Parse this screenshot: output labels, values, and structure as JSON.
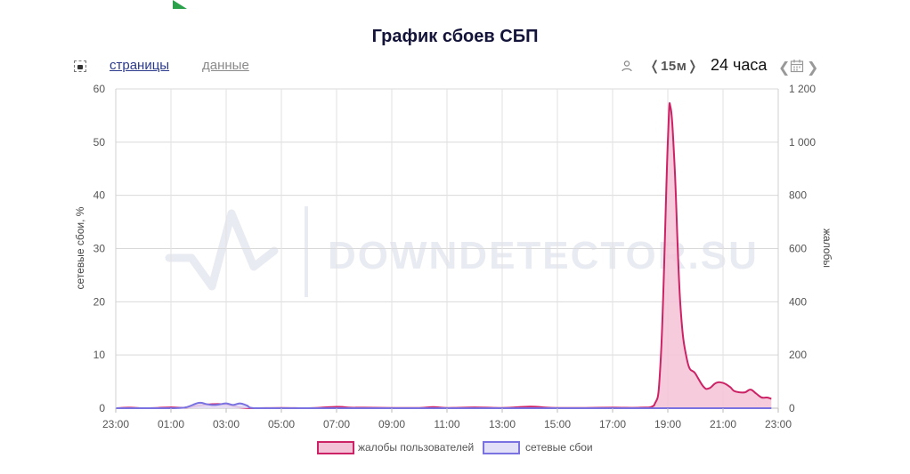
{
  "page": {
    "title": "График сбоев СБП"
  },
  "toolbar": {
    "tab_pages": "страницы",
    "tab_data": "данные",
    "interval": "❬15м❭",
    "period": "24 часа",
    "nav_prev": "❮",
    "nav_next": "❯",
    "icons": [
      "camera-icon",
      "user-icon",
      "calendar-icon"
    ]
  },
  "watermark": "DOWNDETECTOR.SU",
  "chart_data": {
    "type": "area",
    "x_ticks": [
      "23:00",
      "01:00",
      "03:00",
      "05:00",
      "07:00",
      "09:00",
      "11:00",
      "13:00",
      "15:00",
      "17:00",
      "19:00",
      "21:00",
      "23:00"
    ],
    "xlim_hours": [
      0,
      24
    ],
    "y_left": {
      "label": "сетевые сбои, %",
      "ticks": [
        "0",
        "10",
        "20",
        "30",
        "40",
        "50",
        "60"
      ],
      "ylim": [
        0,
        60
      ]
    },
    "y_right": {
      "label": "жалобы",
      "ticks": [
        "0",
        "200",
        "400",
        "600",
        "800",
        "1 000",
        "1 200"
      ],
      "ylim": [
        0,
        1200
      ]
    },
    "legend": {
      "position": "bottom"
    },
    "grid": true,
    "series": [
      {
        "name": "жалобы пользователей",
        "axis": "right",
        "color": "#cc2266",
        "fill": "#f4c2d6",
        "points": [
          [
            0,
            0
          ],
          [
            0.5,
            2
          ],
          [
            1,
            0
          ],
          [
            1.5,
            1
          ],
          [
            2,
            3
          ],
          [
            2.5,
            2
          ],
          [
            3,
            10
          ],
          [
            3.5,
            15
          ],
          [
            4,
            14
          ],
          [
            4.5,
            3
          ],
          [
            5,
            0
          ],
          [
            6,
            1
          ],
          [
            7,
            0
          ],
          [
            8,
            5
          ],
          [
            8.5,
            2
          ],
          [
            9,
            2
          ],
          [
            10,
            1
          ],
          [
            11,
            1
          ],
          [
            11.5,
            4
          ],
          [
            12,
            1
          ],
          [
            13,
            3
          ],
          [
            14,
            1
          ],
          [
            15,
            6
          ],
          [
            15.5,
            3
          ],
          [
            16,
            1
          ],
          [
            17,
            1
          ],
          [
            18,
            2
          ],
          [
            19,
            2
          ],
          [
            19.5,
            10
          ],
          [
            19.75,
            200
          ],
          [
            20,
            1000
          ],
          [
            20.1,
            1130
          ],
          [
            20.25,
            900
          ],
          [
            20.45,
            400
          ],
          [
            20.7,
            180
          ],
          [
            21,
            130
          ],
          [
            21.3,
            80
          ],
          [
            21.5,
            75
          ],
          [
            21.75,
            95
          ],
          [
            22,
            95
          ],
          [
            22.25,
            80
          ],
          [
            22.4,
            65
          ],
          [
            22.6,
            60
          ],
          [
            22.8,
            60
          ],
          [
            23,
            70
          ],
          [
            23.2,
            55
          ],
          [
            23.4,
            40
          ],
          [
            23.6,
            40
          ],
          [
            23.75,
            35
          ]
        ]
      },
      {
        "name": "сетевые сбои",
        "axis": "left",
        "color": "#7a72e0",
        "fill": "#e2dff8",
        "points": [
          [
            0,
            0
          ],
          [
            1,
            0
          ],
          [
            2,
            0
          ],
          [
            2.5,
            0.1
          ],
          [
            3,
            1.0
          ],
          [
            3.25,
            0.8
          ],
          [
            3.5,
            0.6
          ],
          [
            3.75,
            0.7
          ],
          [
            4,
            0.9
          ],
          [
            4.25,
            0.6
          ],
          [
            4.5,
            0.9
          ],
          [
            4.75,
            0.5
          ],
          [
            5,
            0
          ],
          [
            6,
            0
          ],
          [
            8,
            0
          ],
          [
            10,
            0
          ],
          [
            12,
            0
          ],
          [
            14,
            0
          ],
          [
            16,
            0
          ],
          [
            18,
            0
          ],
          [
            20,
            0
          ],
          [
            22,
            0
          ],
          [
            23.75,
            0
          ]
        ]
      }
    ]
  }
}
